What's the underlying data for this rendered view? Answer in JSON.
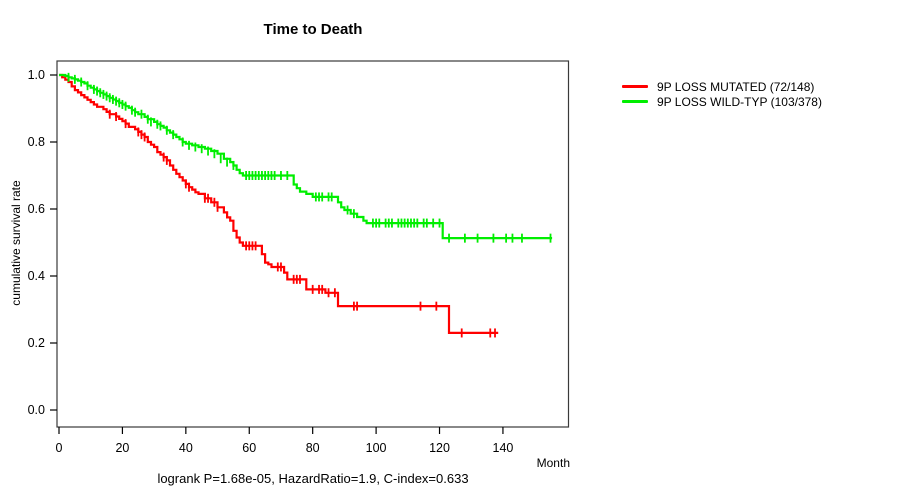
{
  "chart_data": {
    "type": "line",
    "subtype": "kaplan-meier-step-survival",
    "title": "Time to Death",
    "xlabel": "Month",
    "ylabel": "cumulative survival rate",
    "annotation": "logrank P=1.68e-05, HazardRatio=1.9, C-index=0.633",
    "xlim": [
      0,
      160
    ],
    "ylim": [
      0.0,
      1.0
    ],
    "xticks": [
      0,
      20,
      40,
      60,
      80,
      100,
      120,
      140
    ],
    "yticks": [
      0.0,
      0.2,
      0.4,
      0.6,
      0.8,
      1.0
    ],
    "grid": false,
    "legend_position": "right-outside",
    "series": [
      {
        "name": "9P LOSS MUTATED (72/148)",
        "color": "#ff0000",
        "end_month": 138.5,
        "steps": [
          [
            0,
            1.0
          ],
          [
            1,
            0.993
          ],
          [
            2,
            0.986
          ],
          [
            3,
            0.979
          ],
          [
            4,
            0.966
          ],
          [
            5,
            0.955
          ],
          [
            6,
            0.948
          ],
          [
            7,
            0.94
          ],
          [
            8,
            0.933
          ],
          [
            9,
            0.926
          ],
          [
            10,
            0.919
          ],
          [
            11,
            0.912
          ],
          [
            12,
            0.905
          ],
          [
            14,
            0.898
          ],
          [
            15,
            0.89
          ],
          [
            16,
            0.883
          ],
          [
            18,
            0.876
          ],
          [
            19,
            0.869
          ],
          [
            20,
            0.862
          ],
          [
            21,
            0.855
          ],
          [
            22,
            0.845
          ],
          [
            24,
            0.838
          ],
          [
            25,
            0.83
          ],
          [
            26,
            0.822
          ],
          [
            27,
            0.815
          ],
          [
            28,
            0.8
          ],
          [
            29,
            0.792
          ],
          [
            30,
            0.785
          ],
          [
            31,
            0.77
          ],
          [
            32,
            0.762
          ],
          [
            33,
            0.755
          ],
          [
            34,
            0.745
          ],
          [
            35,
            0.73
          ],
          [
            36,
            0.717
          ],
          [
            37,
            0.705
          ],
          [
            38,
            0.695
          ],
          [
            39,
            0.685
          ],
          [
            40,
            0.675
          ],
          [
            41,
            0.665
          ],
          [
            42,
            0.658
          ],
          [
            43,
            0.65
          ],
          [
            44,
            0.645
          ],
          [
            46,
            0.632
          ],
          [
            48,
            0.62
          ],
          [
            50,
            0.605
          ],
          [
            52,
            0.59
          ],
          [
            53,
            0.575
          ],
          [
            54,
            0.565
          ],
          [
            55,
            0.535
          ],
          [
            56,
            0.515
          ],
          [
            57,
            0.5
          ],
          [
            58,
            0.49
          ],
          [
            64,
            0.465
          ],
          [
            65,
            0.44
          ],
          [
            66,
            0.435
          ],
          [
            67,
            0.427
          ],
          [
            71,
            0.41
          ],
          [
            72,
            0.39
          ],
          [
            78,
            0.36
          ],
          [
            84,
            0.35
          ],
          [
            88,
            0.31
          ],
          [
            123,
            0.23
          ]
        ],
        "censors": [
          [
            16,
            0.883
          ],
          [
            18,
            0.876
          ],
          [
            21,
            0.855
          ],
          [
            25,
            0.83
          ],
          [
            26,
            0.822
          ],
          [
            27,
            0.815
          ],
          [
            33,
            0.755
          ],
          [
            34,
            0.745
          ],
          [
            40,
            0.675
          ],
          [
            41,
            0.665
          ],
          [
            46,
            0.632
          ],
          [
            47,
            0.632
          ],
          [
            49,
            0.62
          ],
          [
            50,
            0.605
          ],
          [
            59,
            0.49
          ],
          [
            60,
            0.49
          ],
          [
            61,
            0.49
          ],
          [
            62,
            0.49
          ],
          [
            69,
            0.427
          ],
          [
            70,
            0.427
          ],
          [
            74,
            0.39
          ],
          [
            75,
            0.39
          ],
          [
            76,
            0.39
          ],
          [
            80,
            0.36
          ],
          [
            82,
            0.36
          ],
          [
            83,
            0.36
          ],
          [
            85,
            0.35
          ],
          [
            87,
            0.35
          ],
          [
            93,
            0.31
          ],
          [
            94,
            0.31
          ],
          [
            114,
            0.31
          ],
          [
            119,
            0.31
          ],
          [
            127,
            0.23
          ],
          [
            136,
            0.23
          ],
          [
            137.5,
            0.23
          ]
        ]
      },
      {
        "name": "9P LOSS WILD-TYP (103/378)",
        "color": "#00ee00",
        "end_month": 155.5,
        "steps": [
          [
            0,
            1.0
          ],
          [
            2,
            0.997
          ],
          [
            3,
            0.993
          ],
          [
            4,
            0.99
          ],
          [
            5,
            0.987
          ],
          [
            6,
            0.983
          ],
          [
            7,
            0.979
          ],
          [
            8,
            0.975
          ],
          [
            9,
            0.968
          ],
          [
            10,
            0.962
          ],
          [
            11,
            0.957
          ],
          [
            12,
            0.952
          ],
          [
            13,
            0.947
          ],
          [
            14,
            0.942
          ],
          [
            15,
            0.937
          ],
          [
            16,
            0.932
          ],
          [
            17,
            0.927
          ],
          [
            18,
            0.922
          ],
          [
            19,
            0.917
          ],
          [
            20,
            0.912
          ],
          [
            21,
            0.907
          ],
          [
            22,
            0.902
          ],
          [
            23,
            0.895
          ],
          [
            24,
            0.889
          ],
          [
            25,
            0.883
          ],
          [
            27,
            0.875
          ],
          [
            28,
            0.868
          ],
          [
            30,
            0.86
          ],
          [
            31,
            0.853
          ],
          [
            32,
            0.848
          ],
          [
            33,
            0.843
          ],
          [
            34,
            0.835
          ],
          [
            35,
            0.828
          ],
          [
            36,
            0.822
          ],
          [
            37,
            0.815
          ],
          [
            38,
            0.808
          ],
          [
            39,
            0.8
          ],
          [
            40,
            0.795
          ],
          [
            42,
            0.79
          ],
          [
            44,
            0.785
          ],
          [
            46,
            0.78
          ],
          [
            48,
            0.773
          ],
          [
            50,
            0.765
          ],
          [
            52,
            0.75
          ],
          [
            54,
            0.74
          ],
          [
            55,
            0.73
          ],
          [
            56,
            0.717
          ],
          [
            57,
            0.707
          ],
          [
            58,
            0.7
          ],
          [
            74,
            0.673
          ],
          [
            75,
            0.662
          ],
          [
            76,
            0.652
          ],
          [
            78,
            0.645
          ],
          [
            80,
            0.636
          ],
          [
            88,
            0.62
          ],
          [
            89,
            0.605
          ],
          [
            90,
            0.597
          ],
          [
            92,
            0.586
          ],
          [
            94,
            0.576
          ],
          [
            96,
            0.565
          ],
          [
            97,
            0.558
          ],
          [
            121,
            0.513
          ]
        ],
        "censors": [
          [
            3,
            0.993
          ],
          [
            5,
            0.987
          ],
          [
            7,
            0.979
          ],
          [
            9,
            0.968
          ],
          [
            11,
            0.957
          ],
          [
            12,
            0.952
          ],
          [
            13,
            0.947
          ],
          [
            14,
            0.942
          ],
          [
            15,
            0.937
          ],
          [
            16,
            0.932
          ],
          [
            17,
            0.927
          ],
          [
            18,
            0.922
          ],
          [
            19,
            0.917
          ],
          [
            20,
            0.912
          ],
          [
            21,
            0.907
          ],
          [
            23,
            0.895
          ],
          [
            24,
            0.889
          ],
          [
            26,
            0.883
          ],
          [
            28,
            0.868
          ],
          [
            29,
            0.86
          ],
          [
            31,
            0.853
          ],
          [
            32,
            0.848
          ],
          [
            34,
            0.835
          ],
          [
            36,
            0.822
          ],
          [
            39,
            0.8
          ],
          [
            41,
            0.79
          ],
          [
            43,
            0.785
          ],
          [
            45,
            0.78
          ],
          [
            47,
            0.773
          ],
          [
            49,
            0.765
          ],
          [
            51,
            0.75
          ],
          [
            53,
            0.74
          ],
          [
            55,
            0.73
          ],
          [
            59,
            0.7
          ],
          [
            60,
            0.7
          ],
          [
            61,
            0.7
          ],
          [
            62,
            0.7
          ],
          [
            63,
            0.7
          ],
          [
            64,
            0.7
          ],
          [
            65,
            0.7
          ],
          [
            66,
            0.7
          ],
          [
            67,
            0.7
          ],
          [
            68,
            0.7
          ],
          [
            70,
            0.7
          ],
          [
            72,
            0.7
          ],
          [
            81,
            0.636
          ],
          [
            82,
            0.636
          ],
          [
            83,
            0.636
          ],
          [
            85,
            0.636
          ],
          [
            86,
            0.636
          ],
          [
            91,
            0.597
          ],
          [
            93,
            0.586
          ],
          [
            99,
            0.558
          ],
          [
            100,
            0.558
          ],
          [
            101,
            0.558
          ],
          [
            103,
            0.558
          ],
          [
            104,
            0.558
          ],
          [
            105,
            0.558
          ],
          [
            107,
            0.558
          ],
          [
            108,
            0.558
          ],
          [
            109,
            0.558
          ],
          [
            110,
            0.558
          ],
          [
            111,
            0.558
          ],
          [
            112,
            0.558
          ],
          [
            113,
            0.558
          ],
          [
            115,
            0.558
          ],
          [
            116,
            0.558
          ],
          [
            118,
            0.558
          ],
          [
            120,
            0.558
          ],
          [
            123,
            0.513
          ],
          [
            128,
            0.513
          ],
          [
            132,
            0.513
          ],
          [
            137,
            0.513
          ],
          [
            141,
            0.513
          ],
          [
            143,
            0.513
          ],
          [
            146,
            0.513
          ],
          [
            155,
            0.513
          ]
        ]
      }
    ]
  }
}
